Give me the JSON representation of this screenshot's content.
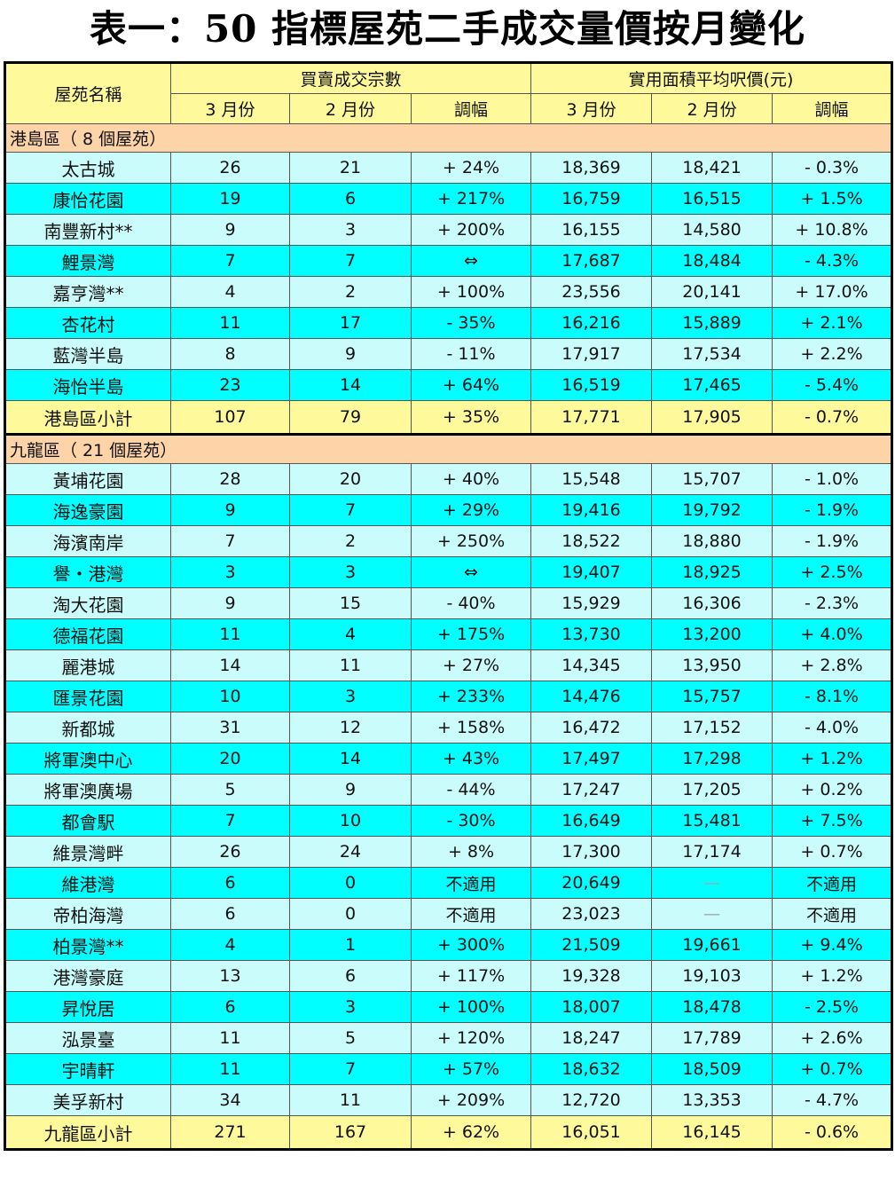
{
  "title": "表一：50 指標屋苑二手成交量價按月變化",
  "header": {
    "estate_col": "屋苑名稱",
    "group_volume": "買賣成交宗數",
    "group_price": "實用面積平均呎價(元)",
    "sub_cols": [
      "3 月份",
      "2 月份",
      "調幅",
      "3 月份",
      "2 月份",
      "調幅"
    ]
  },
  "sections": [
    {
      "label": "港島區（ 8 個屋苑）",
      "rows": [
        {
          "name": "太古城",
          "vol_mar": "26",
          "vol_feb": "21",
          "vol_chg": "+ 24%",
          "price_mar": "18,369",
          "price_feb": "18,421",
          "price_chg": "- 0.3%"
        },
        {
          "name": "康怡花園",
          "vol_mar": "19",
          "vol_feb": "6",
          "vol_chg": "+ 217%",
          "price_mar": "16,759",
          "price_feb": "16,515",
          "price_chg": "+ 1.5%"
        },
        {
          "name": "南豐新村**",
          "vol_mar": "9",
          "vol_feb": "3",
          "vol_chg": "+ 200%",
          "price_mar": "16,155",
          "price_feb": "14,580",
          "price_chg": "+ 10.8%"
        },
        {
          "name": "鯉景灣",
          "vol_mar": "7",
          "vol_feb": "7",
          "vol_chg": "⇔",
          "price_mar": "17,687",
          "price_feb": "18,484",
          "price_chg": "- 4.3%"
        },
        {
          "name": "嘉亨灣**",
          "vol_mar": "4",
          "vol_feb": "2",
          "vol_chg": "+ 100%",
          "price_mar": "23,556",
          "price_feb": "20,141",
          "price_chg": "+ 17.0%"
        },
        {
          "name": "杏花村",
          "vol_mar": "11",
          "vol_feb": "17",
          "vol_chg": "- 35%",
          "price_mar": "16,216",
          "price_feb": "15,889",
          "price_chg": "+ 2.1%"
        },
        {
          "name": "藍灣半島",
          "vol_mar": "8",
          "vol_feb": "9",
          "vol_chg": "- 11%",
          "price_mar": "17,917",
          "price_feb": "17,534",
          "price_chg": "+ 2.2%"
        },
        {
          "name": "海怡半島",
          "vol_mar": "23",
          "vol_feb": "14",
          "vol_chg": "+ 64%",
          "price_mar": "16,519",
          "price_feb": "17,465",
          "price_chg": "- 5.4%"
        }
      ],
      "subtotal": {
        "name": "港島區小計",
        "vol_mar": "107",
        "vol_feb": "79",
        "vol_chg": "+ 35%",
        "price_mar": "17,771",
        "price_feb": "17,905",
        "price_chg": "- 0.7%"
      }
    },
    {
      "label": "九龍區（ 21 個屋苑）",
      "rows": [
        {
          "name": "黃埔花園",
          "vol_mar": "28",
          "vol_feb": "20",
          "vol_chg": "+ 40%",
          "price_mar": "15,548",
          "price_feb": "15,707",
          "price_chg": "- 1.0%"
        },
        {
          "name": "海逸豪園",
          "vol_mar": "9",
          "vol_feb": "7",
          "vol_chg": "+ 29%",
          "price_mar": "19,416",
          "price_feb": "19,792",
          "price_chg": "- 1.9%"
        },
        {
          "name": "海濱南岸",
          "vol_mar": "7",
          "vol_feb": "2",
          "vol_chg": "+ 250%",
          "price_mar": "18,522",
          "price_feb": "18,880",
          "price_chg": "- 1.9%"
        },
        {
          "name": "譽・港灣",
          "vol_mar": "3",
          "vol_feb": "3",
          "vol_chg": "⇔",
          "price_mar": "19,407",
          "price_feb": "18,925",
          "price_chg": "+ 2.5%"
        },
        {
          "name": "淘大花園",
          "vol_mar": "9",
          "vol_feb": "15",
          "vol_chg": "- 40%",
          "price_mar": "15,929",
          "price_feb": "16,306",
          "price_chg": "- 2.3%"
        },
        {
          "name": "德福花園",
          "vol_mar": "11",
          "vol_feb": "4",
          "vol_chg": "+ 175%",
          "price_mar": "13,730",
          "price_feb": "13,200",
          "price_chg": "+ 4.0%"
        },
        {
          "name": "麗港城",
          "vol_mar": "14",
          "vol_feb": "11",
          "vol_chg": "+ 27%",
          "price_mar": "14,345",
          "price_feb": "13,950",
          "price_chg": "+ 2.8%"
        },
        {
          "name": "匯景花園",
          "vol_mar": "10",
          "vol_feb": "3",
          "vol_chg": "+ 233%",
          "price_mar": "14,476",
          "price_feb": "15,757",
          "price_chg": "- 8.1%"
        },
        {
          "name": "新都城",
          "vol_mar": "31",
          "vol_feb": "12",
          "vol_chg": "+ 158%",
          "price_mar": "16,472",
          "price_feb": "17,152",
          "price_chg": "- 4.0%"
        },
        {
          "name": "將軍澳中心",
          "vol_mar": "20",
          "vol_feb": "14",
          "vol_chg": "+ 43%",
          "price_mar": "17,497",
          "price_feb": "17,298",
          "price_chg": "+ 1.2%"
        },
        {
          "name": "將軍澳廣場",
          "vol_mar": "5",
          "vol_feb": "9",
          "vol_chg": "- 44%",
          "price_mar": "17,247",
          "price_feb": "17,205",
          "price_chg": "+ 0.2%"
        },
        {
          "name": "都會駅",
          "vol_mar": "7",
          "vol_feb": "10",
          "vol_chg": "- 30%",
          "price_mar": "16,649",
          "price_feb": "15,481",
          "price_chg": "+ 7.5%"
        },
        {
          "name": "維景灣畔",
          "vol_mar": "26",
          "vol_feb": "24",
          "vol_chg": "+ 8%",
          "price_mar": "17,300",
          "price_feb": "17,174",
          "price_chg": "+ 0.7%"
        },
        {
          "name": "維港灣",
          "vol_mar": "6",
          "vol_feb": "0",
          "vol_chg": "不適用",
          "price_mar": "20,649",
          "price_feb": "—",
          "price_chg": "不適用"
        },
        {
          "name": "帝柏海灣",
          "vol_mar": "6",
          "vol_feb": "0",
          "vol_chg": "不適用",
          "price_mar": "23,023",
          "price_feb": "—",
          "price_chg": "不適用"
        },
        {
          "name": "柏景灣**",
          "vol_mar": "4",
          "vol_feb": "1",
          "vol_chg": "+ 300%",
          "price_mar": "21,509",
          "price_feb": "19,661",
          "price_chg": "+ 9.4%"
        },
        {
          "name": "港灣豪庭",
          "vol_mar": "13",
          "vol_feb": "6",
          "vol_chg": "+ 117%",
          "price_mar": "19,328",
          "price_feb": "19,103",
          "price_chg": "+ 1.2%"
        },
        {
          "name": "昇悅居",
          "vol_mar": "6",
          "vol_feb": "3",
          "vol_chg": "+ 100%",
          "price_mar": "18,007",
          "price_feb": "18,478",
          "price_chg": "- 2.5%"
        },
        {
          "name": "泓景臺",
          "vol_mar": "11",
          "vol_feb": "5",
          "vol_chg": "+ 120%",
          "price_mar": "18,247",
          "price_feb": "17,789",
          "price_chg": "+ 2.6%"
        },
        {
          "name": "宇晴軒",
          "vol_mar": "11",
          "vol_feb": "7",
          "vol_chg": "+ 57%",
          "price_mar": "18,632",
          "price_feb": "18,509",
          "price_chg": "+ 0.7%"
        },
        {
          "name": "美孚新村",
          "vol_mar": "34",
          "vol_feb": "11",
          "vol_chg": "+ 209%",
          "price_mar": "12,720",
          "price_feb": "13,353",
          "price_chg": "- 4.7%"
        }
      ],
      "subtotal": {
        "name": "九龍區小計",
        "vol_mar": "271",
        "vol_feb": "167",
        "vol_chg": "+ 62%",
        "price_mar": "16,051",
        "price_feb": "16,145",
        "price_chg": "- 0.6%"
      }
    }
  ],
  "colors": {
    "header_bg": "#fef99a",
    "section_bg": "#fdd3a8",
    "row_light": "#cbfcfc",
    "row_cyan": "#00ffff",
    "subtotal_bg": "#fef99a"
  }
}
